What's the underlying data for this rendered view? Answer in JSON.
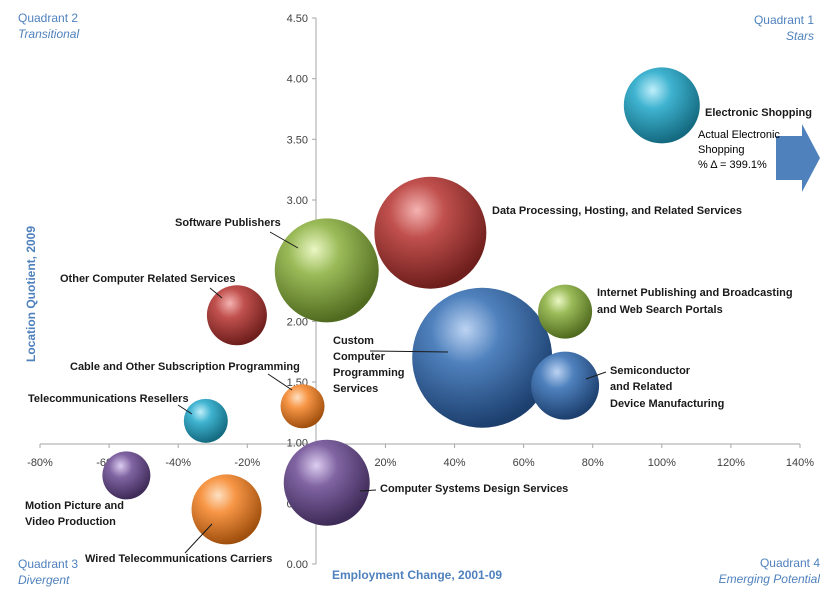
{
  "quadrants": {
    "q1": {
      "title": "Quadrant 1",
      "subtitle": "Stars"
    },
    "q2": {
      "title": "Quadrant 2",
      "subtitle": "Transitional"
    },
    "q3": {
      "title": "Quadrant 3",
      "subtitle": "Divergent"
    },
    "q4": {
      "title": "Quadrant 4",
      "subtitle": "Emerging Potential"
    }
  },
  "colors": {
    "axis": "#a6a6a6",
    "accent": "#4f81bd",
    "teal": "#31a2bf",
    "red": "#c0504d",
    "green": "#9bbb59",
    "blue": "#4f81bd",
    "purple": "#8064a2",
    "orange": "#f79646"
  },
  "annotation": {
    "line1": "Actual Electronic",
    "line2": "Shopping",
    "line3": "% Δ = 399.1%"
  },
  "chart_data": {
    "type": "bubble",
    "xlabel": "Employment Change, 2001-09",
    "ylabel": "Location Quotient, 2009",
    "xlim": [
      -0.8,
      1.4
    ],
    "ylim": [
      0,
      4.5
    ],
    "x_ticks": [
      -0.8,
      -0.6,
      -0.4,
      -0.2,
      0,
      0.2,
      0.4,
      0.6,
      0.8,
      1.0,
      1.2,
      1.4
    ],
    "x_tick_labels": [
      "-80%",
      "-60%",
      "-40%",
      "-20%",
      "0%",
      "20%",
      "40%",
      "60%",
      "80%",
      "100%",
      "120%",
      "140%"
    ],
    "y_ticks": [
      0,
      0.5,
      1.0,
      1.5,
      2.0,
      2.5,
      3.0,
      3.5,
      4.0,
      4.5
    ],
    "y_tick_labels": [
      "0.00",
      "0.50",
      "1.00",
      "1.50",
      "2.00",
      "2.50",
      "3.00",
      "3.50",
      "4.00",
      "4.50"
    ],
    "grid": false,
    "bubbles": [
      {
        "label": "Electronic Shopping",
        "x": 1.0,
        "y": 3.78,
        "size": 38,
        "color": "teal"
      },
      {
        "label": "Data Processing, Hosting, and Related Services",
        "x": 0.33,
        "y": 2.73,
        "size": 56,
        "color": "red"
      },
      {
        "label": "Software Publishers",
        "x": 0.03,
        "y": 2.42,
        "size": 52,
        "color": "green"
      },
      {
        "label": "Other Computer Related Services",
        "x": -0.23,
        "y": 2.05,
        "size": 30,
        "color": "red"
      },
      {
        "label": "Internet Publishing and Broadcasting and Web Search Portals",
        "x": 0.72,
        "y": 2.08,
        "size": 27,
        "color": "green"
      },
      {
        "label": "Custom Computer Programming Services",
        "x": 0.48,
        "y": 1.7,
        "size": 70,
        "color": "blue"
      },
      {
        "label": "Semiconductor and Related Device Manufacturing",
        "x": 0.72,
        "y": 1.47,
        "size": 34,
        "color": "blue"
      },
      {
        "label": "Cable and Other Subscription Programming",
        "x": -0.04,
        "y": 1.3,
        "size": 22,
        "color": "orange"
      },
      {
        "label": "Telecommunications Resellers",
        "x": -0.32,
        "y": 1.18,
        "size": 22,
        "color": "teal"
      },
      {
        "label": "Motion Picture and Video Production",
        "x": -0.55,
        "y": 0.73,
        "size": 24,
        "color": "purple"
      },
      {
        "label": "Computer Systems Design Services",
        "x": 0.03,
        "y": 0.67,
        "size": 43,
        "color": "purple"
      },
      {
        "label": "Wired Telecommunications Carriers",
        "x": -0.26,
        "y": 0.45,
        "size": 35,
        "color": "orange"
      }
    ]
  }
}
